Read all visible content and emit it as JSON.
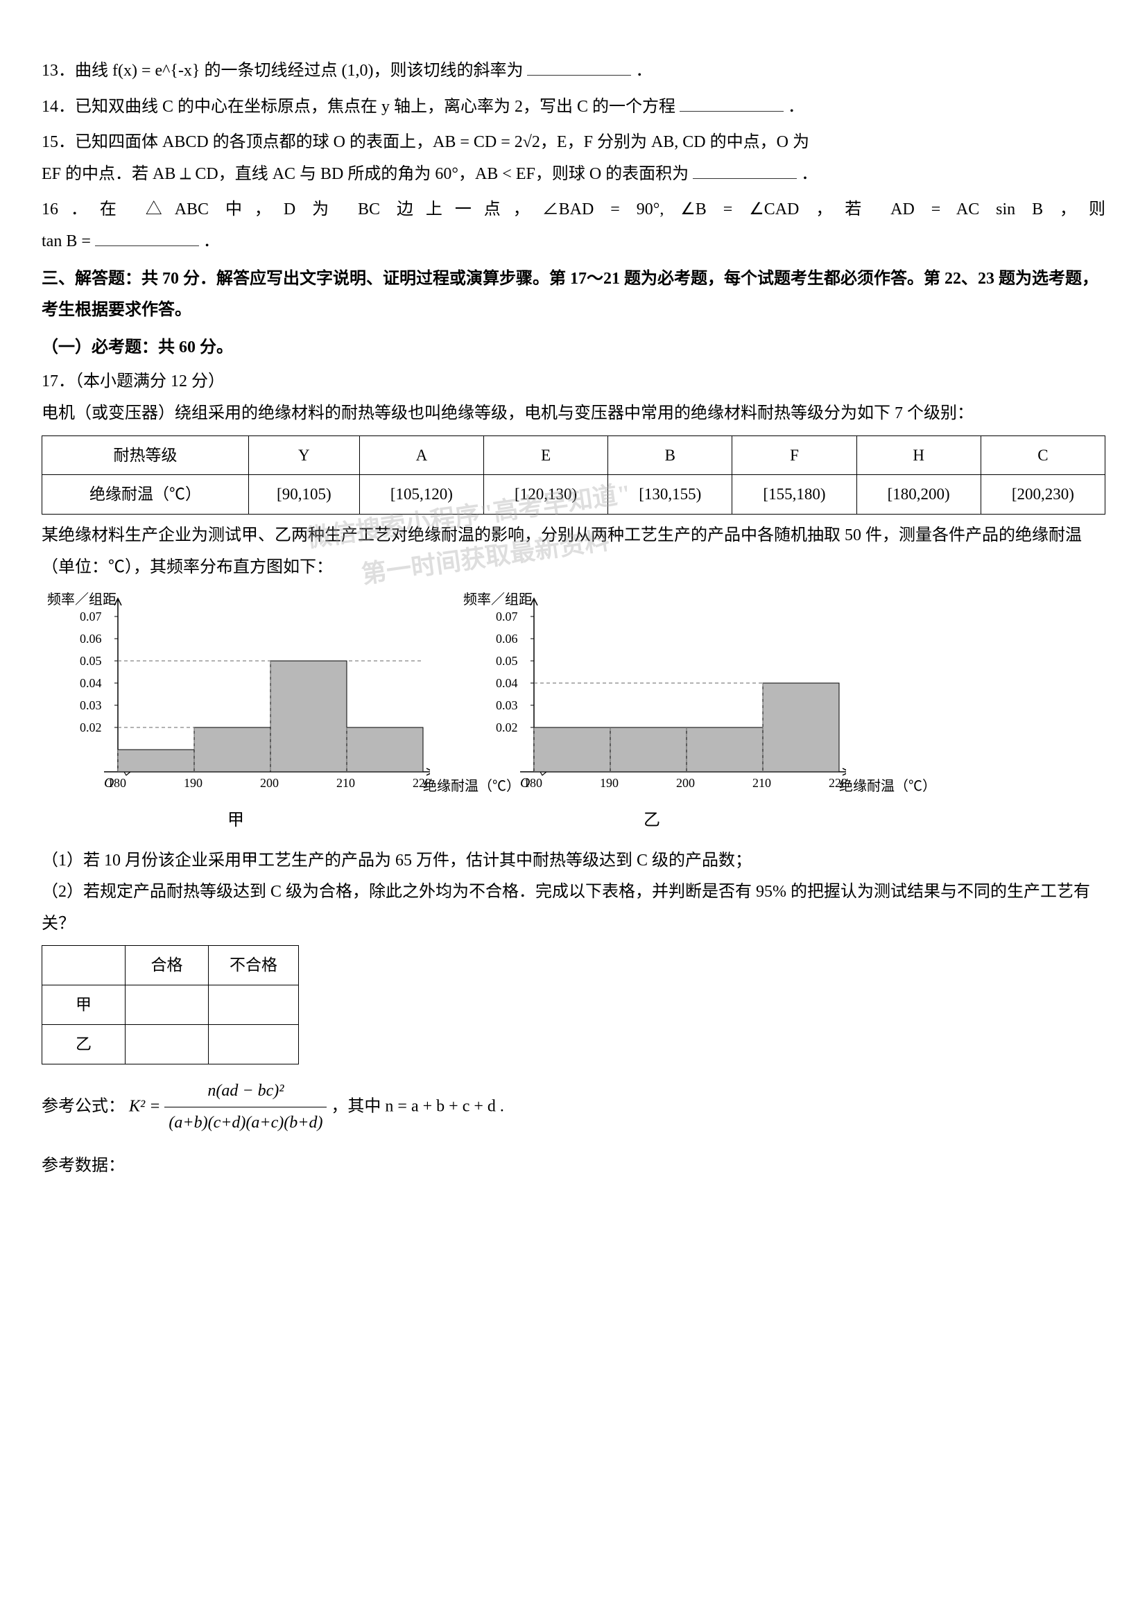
{
  "q13": "13．曲线 f(x) = e^{-x} 的一条切线经过点 (1,0)，则该切线的斜率为",
  "q14": "14．已知双曲线 C 的中心在坐标原点，焦点在 y 轴上，离心率为 2，写出 C 的一个方程",
  "q15a": "15．已知四面体 ABCD 的各顶点都的球 O 的表面上，AB = CD = 2√2，E，F 分别为 AB, CD 的中点，O 为",
  "q15b": "EF 的中点．若 AB ⟂ CD，直线 AC 与 BD 所成的角为 60°，AB < EF，则球 O 的表面积为",
  "q16a": "16．在 △ABC 中，D 为 BC 边上一点，∠BAD = 90°, ∠B = ∠CAD ，若 AD = AC sin B ，则",
  "q16b": "tan B =",
  "section3_title": "三、解答题：共 70 分．解答应写出文字说明、证明过程或演算步骤。第 17～21 题为必考题，每个试题考生都必须作答。第 22、23 题为选考题，考生根据要求作答。",
  "subsection1": "（一）必考题：共 60 分。",
  "q17_head": "17．（本小题满分 12 分）",
  "q17_p1": "电机（或变压器）绕组采用的绝缘材料的耐热等级也叫绝缘等级，电机与变压器中常用的绝缘材料耐热等级分为如下 7 个级别：",
  "table1": {
    "row1": [
      "耐热等级",
      "Y",
      "A",
      "E",
      "B",
      "F",
      "H",
      "C"
    ],
    "row2": [
      "绝缘耐温（℃）",
      "[90,105)",
      "[105,120)",
      "[120,130)",
      "[130,155)",
      "[155,180)",
      "[180,200)",
      "[200,230)"
    ]
  },
  "q17_p2": "某绝缘材料生产企业为测试甲、乙两种生产工艺对绝缘耐温的影响，分别从两种工艺生产的产品中各随机抽取 50 件，测量各件产品的绝缘耐温（单位：℃），其频率分布直方图如下：",
  "chart_jia": {
    "ylabel": "频率／组距",
    "xlabel": "绝缘耐温（℃）",
    "caption": "甲",
    "ymax": 0.075,
    "yticks": [
      0.02,
      0.03,
      0.04,
      0.05,
      0.06,
      0.07
    ],
    "xticks": [
      180,
      190,
      200,
      210,
      220
    ],
    "bars": [
      {
        "x0": 180,
        "x1": 190,
        "h": 0.01,
        "color": "#b8b8b8"
      },
      {
        "x0": 190,
        "x1": 200,
        "h": 0.02,
        "color": "#b8b8b8"
      },
      {
        "x0": 200,
        "x1": 210,
        "h": 0.05,
        "color": "#b8b8b8"
      },
      {
        "x0": 210,
        "x1": 220,
        "h": 0.02,
        "color": "#b8b8b8"
      }
    ],
    "guides": [
      0.02,
      0.05
    ],
    "axis_color": "#000",
    "bg": "#fff"
  },
  "chart_yi": {
    "ylabel": "频率／组距",
    "xlabel": "绝缘耐温（℃）",
    "caption": "乙",
    "ymax": 0.075,
    "yticks": [
      0.02,
      0.03,
      0.04,
      0.05,
      0.06,
      0.07
    ],
    "xticks": [
      180,
      190,
      200,
      210,
      220
    ],
    "bars": [
      {
        "x0": 180,
        "x1": 190,
        "h": 0.02,
        "color": "#b8b8b8"
      },
      {
        "x0": 190,
        "x1": 200,
        "h": 0.02,
        "color": "#b8b8b8"
      },
      {
        "x0": 200,
        "x1": 210,
        "h": 0.02,
        "color": "#b8b8b8"
      },
      {
        "x0": 210,
        "x1": 220,
        "h": 0.04,
        "color": "#b8b8b8"
      }
    ],
    "guides": [
      0.02,
      0.04
    ],
    "axis_color": "#000",
    "bg": "#fff"
  },
  "q17_sub1": "（1）若 10 月份该企业采用甲工艺生产的产品为 65 万件，估计其中耐热等级达到 C 级的产品数；",
  "q17_sub2": "（2）若规定产品耐热等级达到 C 级为合格，除此之外均为不合格．完成以下表格，并判断是否有 95% 的把握认为测试结果与不同的生产工艺有关？",
  "table2": {
    "header": [
      "",
      "合格",
      "不合格"
    ],
    "rows": [
      [
        "甲",
        "",
        ""
      ],
      [
        "乙",
        "",
        ""
      ]
    ]
  },
  "formula_label": "参考公式：",
  "formula_k2": "K² =",
  "formula_num": "n(ad − bc)²",
  "formula_den": "(a+b)(c+d)(a+c)(b+d)",
  "formula_tail": "，其中 n = a + b + c + d .",
  "ref_data": "参考数据：",
  "watermark1": "微信搜索小程序\"高考早知道\"",
  "watermark2": "第一时间获取最新资料",
  "period": "．"
}
